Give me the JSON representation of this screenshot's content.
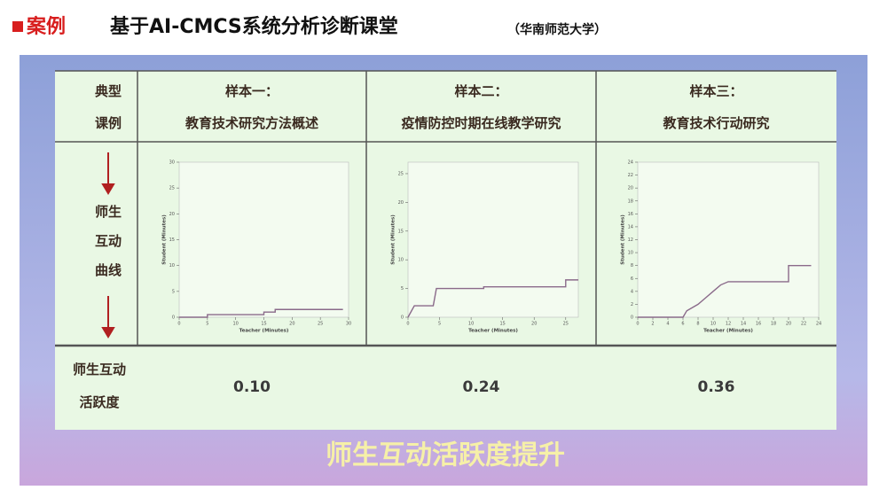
{
  "header": {
    "tag": "案例",
    "title": "基于AI-CMCS系统分析诊断课堂",
    "affiliation": "（华南师范大学）"
  },
  "table": {
    "row_labels": [
      [
        "典型",
        "课例"
      ],
      [
        "师生",
        "互动",
        "曲线"
      ],
      [
        "师生互动",
        "活跃度"
      ]
    ],
    "samples": [
      {
        "name": "样本一：",
        "topic": "教育技术研究方法概述",
        "activity": "0.10"
      },
      {
        "name": "样本二：",
        "topic": "疫情防控时期在线教学研究",
        "activity": "0.24"
      },
      {
        "name": "样本三：",
        "topic": "教育技术行动研究",
        "activity": "0.36"
      }
    ]
  },
  "banner": "师生互动活跃度提升",
  "chart_data": [
    {
      "type": "line",
      "xlabel": "Teacher (Minutes)",
      "ylabel": "Student (Minutes)",
      "color": "#8a6a8a",
      "x": [
        0,
        5,
        5,
        15,
        15,
        17,
        17,
        29
      ],
      "values": [
        0,
        0,
        0.5,
        0.5,
        1,
        1,
        1.5,
        1.5
      ],
      "xlim": [
        0,
        30
      ],
      "ylim": [
        0,
        30
      ],
      "xticks": [
        0,
        5,
        10,
        15,
        20,
        25,
        30
      ],
      "yticks": [
        0,
        5,
        10,
        15,
        20,
        25,
        30
      ]
    },
    {
      "type": "line",
      "xlabel": "Teacher (Minutes)",
      "ylabel": "Student (Minutes)",
      "color": "#8a6a8a",
      "x": [
        0,
        0.5,
        1,
        4,
        4.5,
        12,
        12,
        25,
        25,
        27
      ],
      "values": [
        0,
        1,
        2,
        2,
        5,
        5,
        5.3,
        5.3,
        6.5,
        6.5
      ],
      "xlim": [
        0,
        27
      ],
      "ylim": [
        0,
        27
      ],
      "xticks": [
        0,
        5,
        10,
        15,
        20,
        25
      ],
      "yticks": [
        0,
        5,
        10,
        15,
        20,
        25
      ]
    },
    {
      "type": "line",
      "xlabel": "Teacher (Minutes)",
      "ylabel": "Student (Minutes)",
      "color": "#8a6a8a",
      "x": [
        0,
        6,
        6.5,
        8,
        9,
        10,
        11,
        12,
        20,
        20,
        23
      ],
      "values": [
        0,
        0,
        1,
        2,
        3,
        4,
        5,
        5.5,
        5.5,
        8,
        8
      ],
      "xlim": [
        0,
        24
      ],
      "ylim": [
        0,
        24
      ],
      "xticks": [
        0,
        2,
        4,
        6,
        8,
        10,
        12,
        14,
        16,
        18,
        20,
        22,
        24
      ],
      "yticks": [
        0,
        2,
        4,
        6,
        8,
        10,
        12,
        14,
        16,
        18,
        20,
        22,
        24
      ]
    }
  ]
}
